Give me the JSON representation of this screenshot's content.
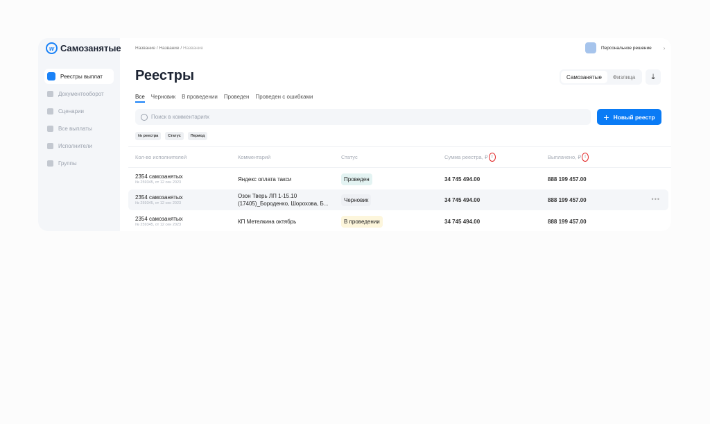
{
  "logo": "Самозанятые",
  "sidebar": {
    "items": [
      {
        "label": "Реестры выплат",
        "active": true
      },
      {
        "label": "Документооборот"
      },
      {
        "label": "Сценарии"
      },
      {
        "label": "Все выплаты"
      },
      {
        "label": "Исполнители"
      },
      {
        "label": "Группы"
      }
    ]
  },
  "breadcrumbs": [
    "Название",
    "Название",
    "Название"
  ],
  "persona": "Персональное решение",
  "title": "Реестры",
  "segment": {
    "options": [
      "Самозанятые",
      "Физлица"
    ],
    "selected": "Самозанятые"
  },
  "tabs": [
    {
      "label": "Все",
      "active": true
    },
    {
      "label": "Черновик"
    },
    {
      "label": "В проведении"
    },
    {
      "label": "Проведен"
    },
    {
      "label": "Проведен с ошибками"
    }
  ],
  "search": {
    "placeholder": "Поиск в комментариях"
  },
  "new_button": "Новый реестр",
  "filters": [
    "№ реестра",
    "Статус",
    "Период"
  ],
  "table": {
    "headers": [
      "Кол-во исполнителей",
      "Комментарий",
      "Статус",
      "Сумма реестра, ₽",
      "Выплачено, ₽"
    ],
    "rows": [
      {
        "count": "2354 самозанятых",
        "meta": "№ 259345, от 12 сен 2023",
        "comment": "Яндекс оплата такси",
        "status": "Проведен",
        "sum": "34 745 494.00",
        "paid": "888 199 457.00"
      },
      {
        "count": "2354 самозанятых",
        "meta": "№ 259345, от 12 сен 2023",
        "comment": "Озон Тверь ЛП 1-15.10 (17405)_Бороденко, Шорохова, Б...",
        "status": "Черновик",
        "sum": "34 745 494.00",
        "paid": "888 199 457.00"
      },
      {
        "count": "2354 самозанятых",
        "meta": "№ 259345, от 12 сен 2023",
        "comment": "КП Метелкина октябрь",
        "status": "В проведении",
        "sum": "34 745 494.00",
        "paid": "888 199 457.00"
      }
    ]
  },
  "colors": {
    "accent": "#0a7bf5",
    "annotation": "#e02020"
  }
}
